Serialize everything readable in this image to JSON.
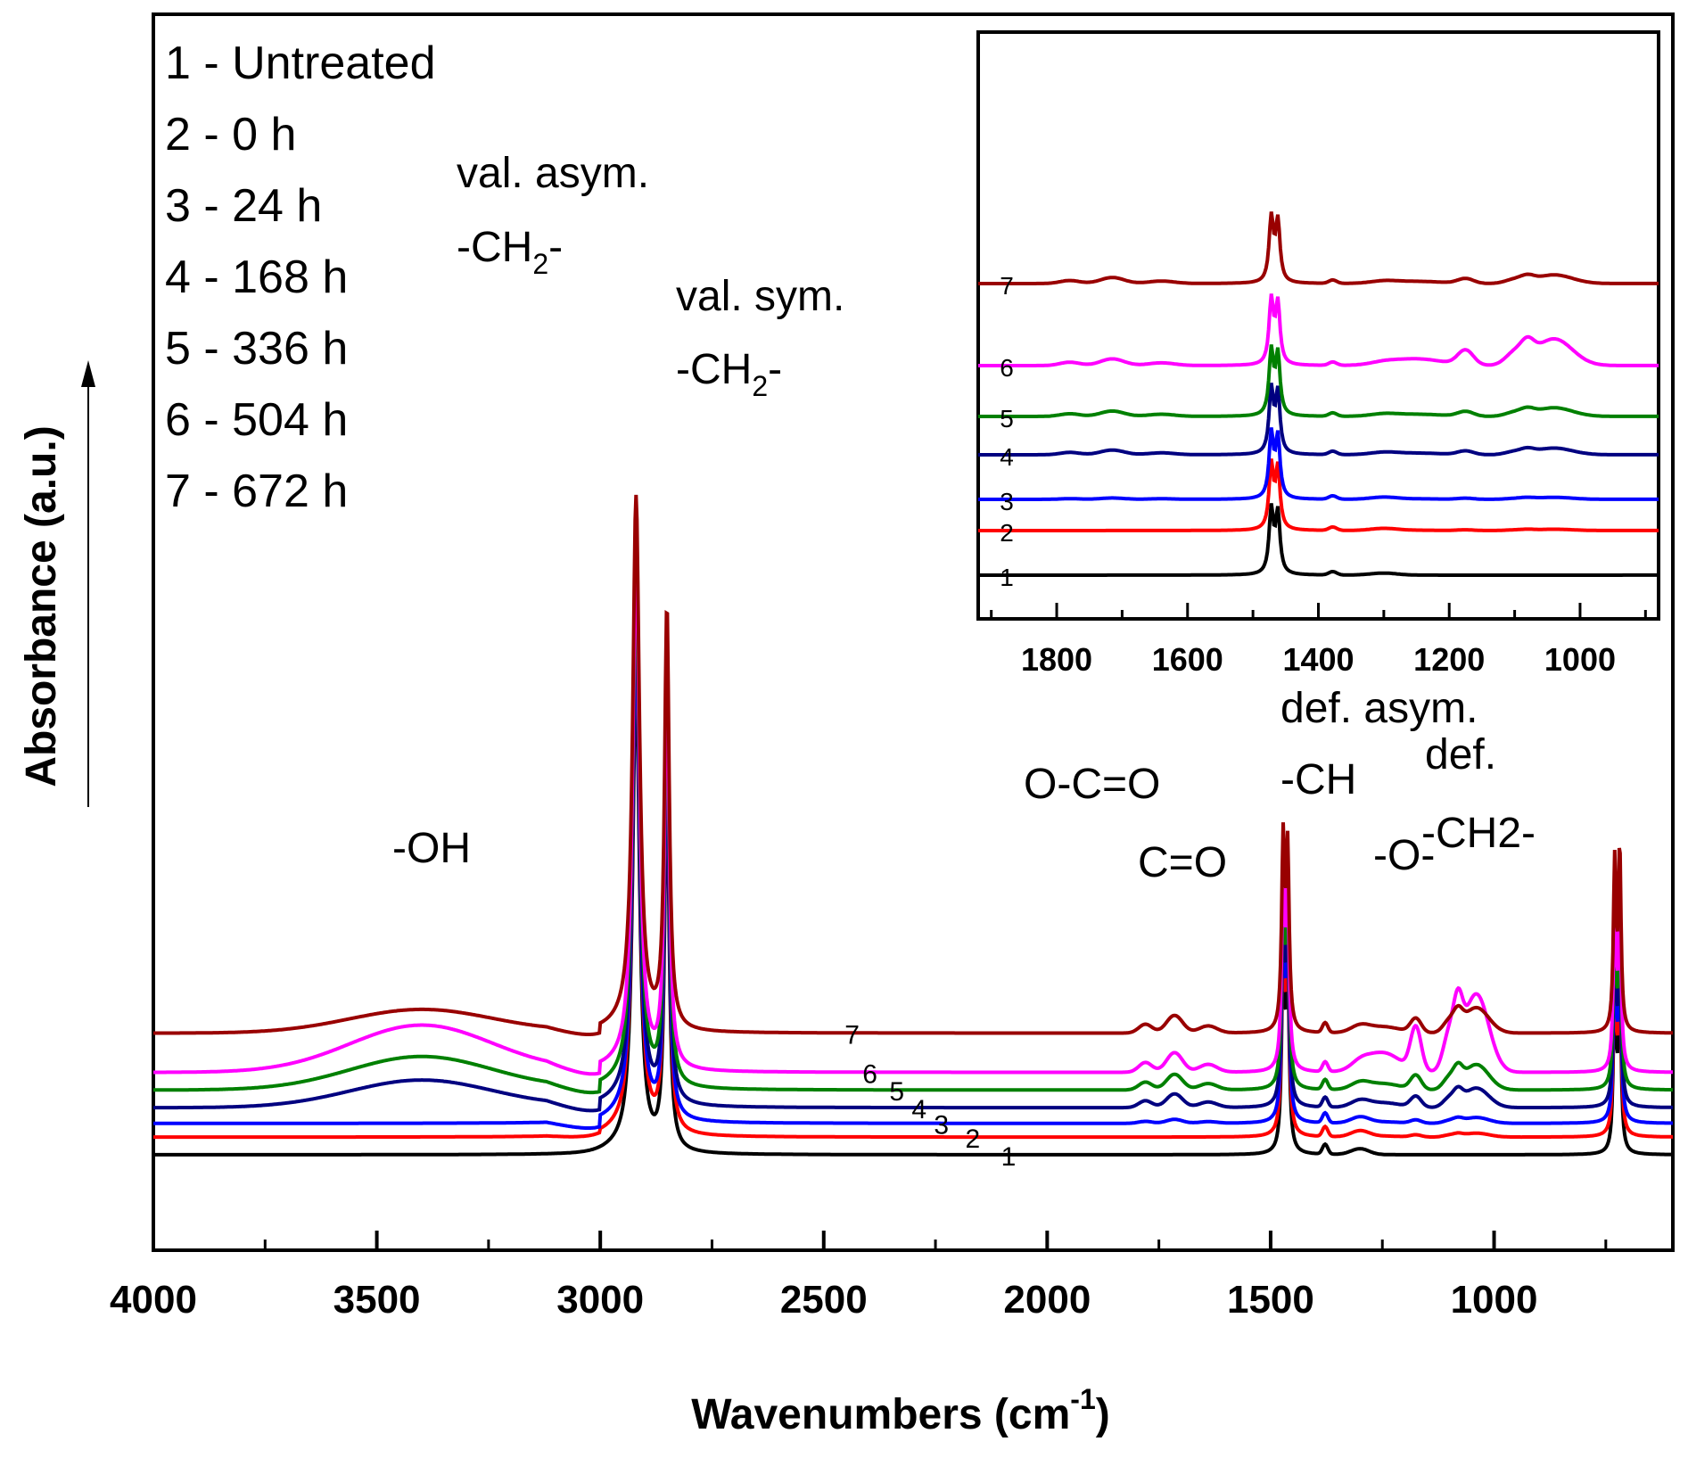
{
  "chart_data": [
    {
      "type": "line",
      "title": "",
      "xlabel": "Wavenumbers (cm",
      "xlabel_sup": "-1",
      "xlabel_end": ")",
      "ylabel": "Absorbance (a.u.)",
      "x_reversed": true,
      "xlim": [
        4000,
        600
      ],
      "xticks": [
        4000,
        3500,
        3000,
        2500,
        2000,
        1500,
        1000
      ],
      "y_ticks_shown": false,
      "legend_position": "top-left",
      "legend": [
        "1 -  Untreated",
        "2 - 0 h",
        "3 - 24 h",
        "4 - 168 h",
        "5 - 336 h",
        "6 - 504 h",
        "7 - 672 h"
      ],
      "annotations": {
        "oh": "-OH",
        "val_asym": "val. asym.",
        "val_asym_group": "-CH",
        "val_asym_sub": "2",
        "val_asym_end": "-",
        "val_sym": "val. sym.",
        "val_sym_group": "-CH",
        "val_sym_sub": "2",
        "val_sym_end": "-",
        "ococ": "O-C=O",
        "co": "C=O",
        "def_asym": "def. asym.",
        "def_asym_group": "-CH",
        "ether": "-O-",
        "def": "def.",
        "def_group": "-CH2-"
      },
      "series": [
        {
          "label": "1",
          "color": "#000000",
          "baseline": 0.0,
          "oh": 0.0,
          "rise": 0.0,
          "carbonyl": 0.0,
          "fp": 0.0,
          "peaks": {
            "2920": 2.45,
            "2850": 1.9,
            "1470": 0.95,
            "1463": 0.9,
            "720": 0.92,
            "730": 0.85
          }
        },
        {
          "label": "2",
          "color": "#ff0000",
          "baseline": 0.09,
          "oh": 0.0,
          "rise": 0.02,
          "carbonyl": 0.0,
          "fp": 0.02,
          "peaks": {
            "2920": 2.55,
            "2850": 2.0,
            "1470": 0.95,
            "1463": 0.9,
            "720": 0.92,
            "730": 0.85
          }
        },
        {
          "label": "3",
          "color": "#0000ff",
          "baseline": 0.16,
          "oh": 0.0,
          "rise": 0.06,
          "carbonyl": 0.02,
          "fp": 0.03,
          "peaks": {
            "2920": 2.5,
            "2850": 1.95,
            "1470": 0.95,
            "1463": 0.9,
            "720": 0.92,
            "730": 0.85
          }
        },
        {
          "label": "4",
          "color": "#000080",
          "baseline": 0.24,
          "oh": 0.14,
          "rise": 0.06,
          "carbonyl": 0.07,
          "fp": 0.1,
          "peaks": {
            "2920": 2.55,
            "2850": 2.0,
            "1470": 0.95,
            "1463": 0.9,
            "720": 0.92,
            "730": 0.85
          }
        },
        {
          "label": "5",
          "color": "#008000",
          "baseline": 0.33,
          "oh": 0.17,
          "rise": 0.06,
          "carbonyl": 0.08,
          "fp": 0.13,
          "peaks": {
            "2920": 2.6,
            "2850": 2.05,
            "1470": 0.95,
            "1463": 0.9,
            "720": 0.92,
            "730": 0.85
          }
        },
        {
          "label": "6",
          "color": "#ff00ff",
          "baseline": 0.42,
          "oh": 0.24,
          "rise": 0.06,
          "carbonyl": 0.1,
          "fp": 0.4,
          "peaks": {
            "2920": 2.65,
            "2850": 2.1,
            "1470": 0.95,
            "1463": 0.9,
            "720": 0.92,
            "730": 0.85
          }
        },
        {
          "label": "7",
          "color": "#990000",
          "baseline": 0.62,
          "oh": 0.12,
          "rise": 0.05,
          "carbonyl": 0.09,
          "fp": 0.13,
          "peaks": {
            "2920": 2.7,
            "2850": 2.15,
            "1470": 0.95,
            "1463": 0.9,
            "720": 0.92,
            "730": 0.85
          }
        }
      ]
    },
    {
      "type": "line",
      "title": "",
      "inset": true,
      "x_reversed": true,
      "xlim": [
        1920,
        880
      ],
      "xticks": [
        1800,
        1600,
        1400,
        1200,
        1000
      ],
      "series_labels": [
        "1",
        "2",
        "3",
        "4",
        "5",
        "6",
        "7"
      ]
    }
  ]
}
